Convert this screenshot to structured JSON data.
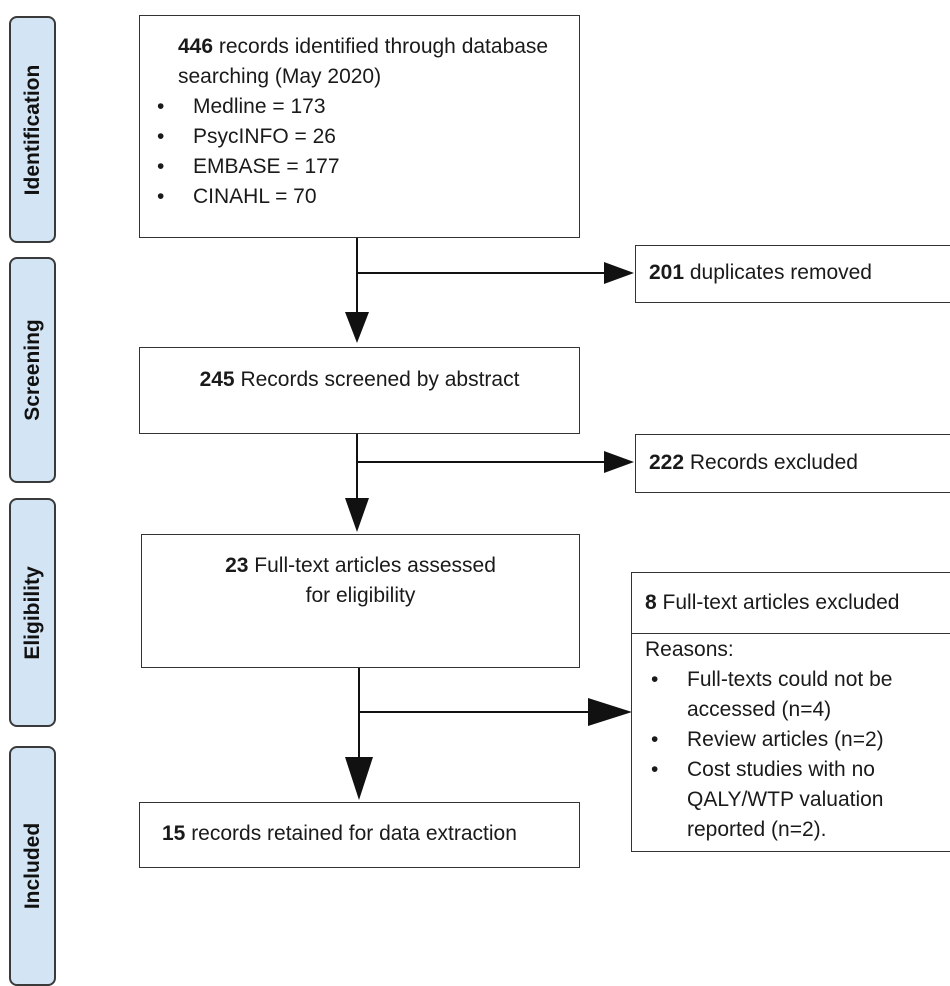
{
  "stages": [
    {
      "label": "Identification"
    },
    {
      "label": "Screening"
    },
    {
      "label": "Eligibility"
    },
    {
      "label": "Included"
    }
  ],
  "identification": {
    "count": "446",
    "text": " records identified through database searching (May 2020)",
    "databases": [
      "Medline = 173",
      "PsycINFO = 26",
      "EMBASE = 177",
      "CINAHL = 70"
    ]
  },
  "duplicates": {
    "count": "201",
    "text": " duplicates removed"
  },
  "screening": {
    "count": "245",
    "text": " Records screened by abstract"
  },
  "screen_excluded": {
    "count": "222",
    "text": " Records excluded"
  },
  "eligibility": {
    "count": "23",
    "text": " Full-text articles assessed for eligibility"
  },
  "fulltext_excluded": {
    "count": "8",
    "text": " Full-text articles excluded",
    "reasons_heading": "Reasons:",
    "reasons": [
      "Full-texts could not be accessed (n=4)",
      "Review articles (n=2)",
      "Cost studies with no QALY/WTP valuation reported (n=2)."
    ]
  },
  "included": {
    "count": "15",
    "text": " records retained for data extraction"
  }
}
